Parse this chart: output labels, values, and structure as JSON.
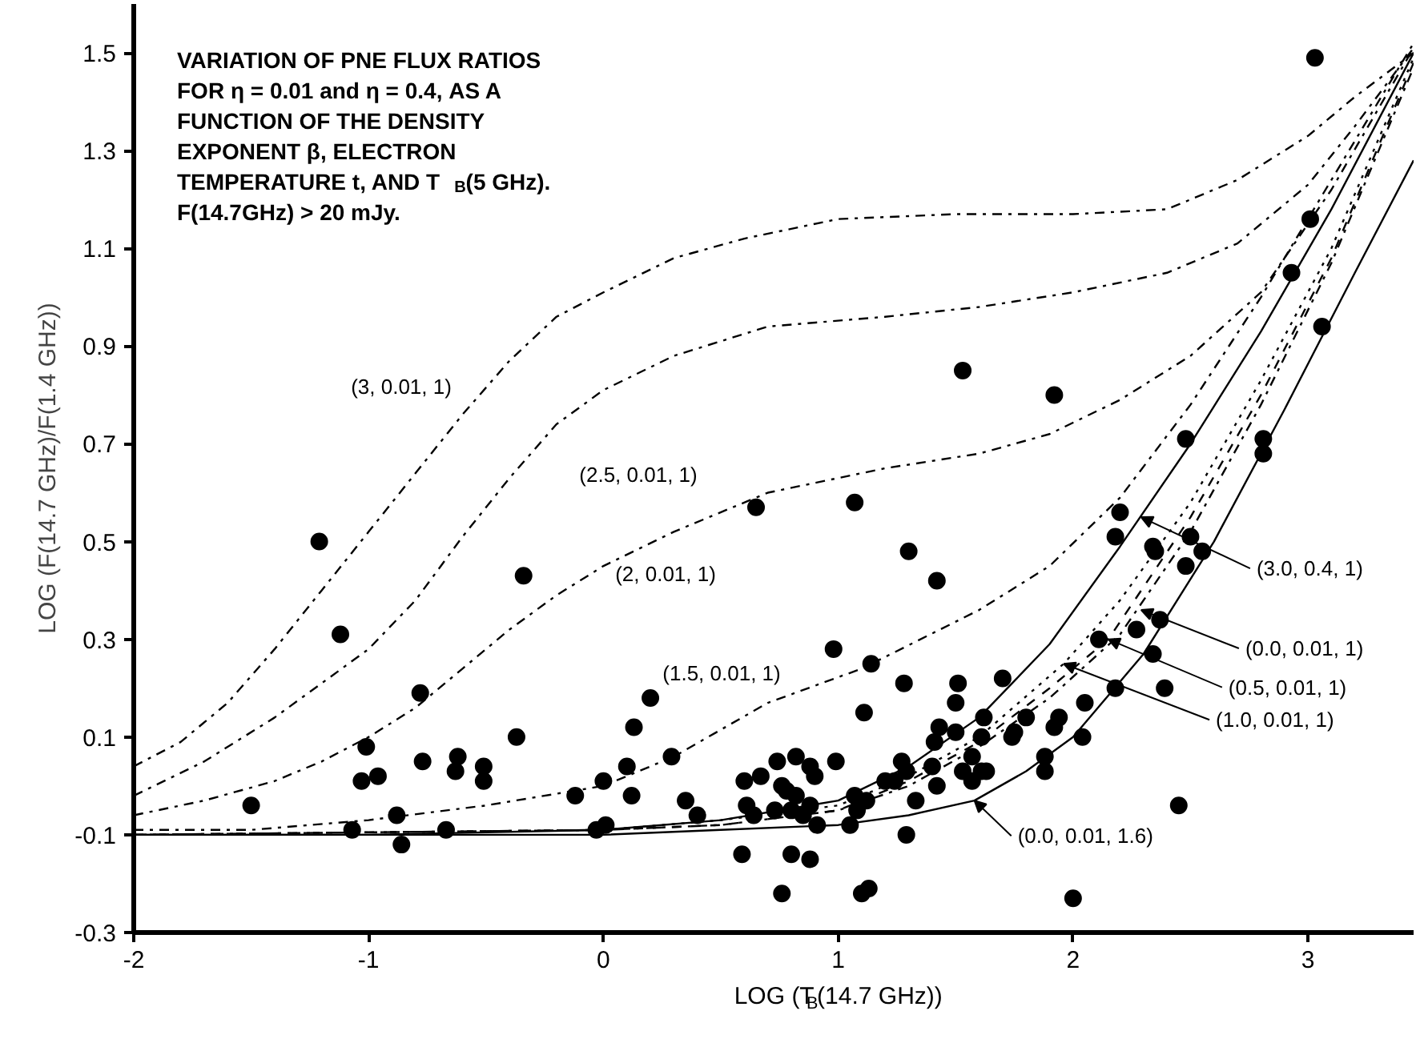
{
  "chart_data": {
    "type": "scatter",
    "xlabel": "LOG (T$_{B}$(14.7 GHz))",
    "ylabel": "LOG (F(14.7 GHz)/F(1.4 GHz))",
    "xlim": [
      -2,
      3.45
    ],
    "ylim": [
      -0.3,
      1.6
    ],
    "xticks": [
      -2,
      -1,
      0,
      1,
      2,
      3
    ],
    "yticks": [
      -0.3,
      -0.1,
      0.1,
      0.3,
      0.5,
      0.7,
      0.9,
      1.1,
      1.3,
      1.5
    ],
    "grid": false,
    "series": [
      {
        "marker": "circle",
        "color": "#000000",
        "x": [
          -1.5,
          -1.21,
          -1.12,
          -0.78,
          -0.34,
          -0.37,
          -1.01,
          -1.03,
          -0.96,
          -0.77,
          -0.62,
          -0.63,
          -0.51,
          -0.51,
          -0.88,
          -1.07,
          -0.67,
          -0.86,
          -0.12,
          0.0,
          0.1,
          0.13,
          0.2,
          0.12,
          0.29,
          0.35,
          0.4,
          -0.03,
          0.01,
          0.59,
          0.6,
          0.61,
          0.64,
          0.67,
          0.65,
          1.07,
          1.3,
          1.42,
          0.98,
          1.14,
          1.11,
          1.28,
          1.51,
          1.5,
          1.7,
          1.62,
          1.43,
          1.41,
          1.5,
          1.61,
          1.74,
          1.75,
          1.8,
          1.94,
          1.92,
          2.05,
          2.04,
          1.88,
          1.88,
          1.57,
          1.53,
          1.57,
          1.61,
          1.63,
          1.4,
          1.42,
          1.33,
          1.27,
          1.29,
          1.24,
          1.2,
          0.99,
          0.82,
          0.88,
          0.9,
          0.74,
          0.76,
          0.78,
          0.82,
          0.73,
          0.8,
          0.85,
          0.88,
          0.91,
          1.05,
          1.07,
          1.12,
          1.08,
          1.29,
          0.8,
          0.88,
          0.76,
          1.1,
          1.13,
          2.0,
          2.45,
          2.18,
          2.39,
          2.11,
          2.27,
          2.37,
          2.34,
          2.2,
          2.18,
          2.34,
          2.35,
          2.5,
          2.55,
          2.48,
          3.03,
          3.01,
          2.93,
          3.06,
          2.81,
          2.81,
          2.48,
          1.53,
          1.92
        ],
        "values": [
          -0.04,
          0.5,
          0.31,
          0.19,
          0.43,
          0.1,
          0.08,
          0.01,
          0.02,
          0.05,
          0.06,
          0.03,
          0.04,
          0.01,
          -0.06,
          -0.09,
          -0.09,
          -0.12,
          -0.02,
          0.01,
          0.04,
          0.12,
          0.18,
          -0.02,
          0.06,
          -0.03,
          -0.06,
          -0.09,
          -0.08,
          -0.14,
          0.01,
          -0.04,
          -0.06,
          0.02,
          0.57,
          0.58,
          0.48,
          0.42,
          0.28,
          0.25,
          0.15,
          0.21,
          0.21,
          0.17,
          0.22,
          0.14,
          0.12,
          0.09,
          0.11,
          0.1,
          0.1,
          0.11,
          0.14,
          0.14,
          0.12,
          0.17,
          0.1,
          0.06,
          0.03,
          0.06,
          0.03,
          0.01,
          0.03,
          0.03,
          0.04,
          0.0,
          -0.03,
          0.05,
          0.03,
          0.01,
          0.01,
          0.05,
          0.06,
          0.04,
          0.02,
          0.05,
          0.0,
          -0.01,
          -0.02,
          -0.05,
          -0.05,
          -0.06,
          -0.04,
          -0.08,
          -0.08,
          -0.02,
          -0.03,
          -0.05,
          -0.1,
          -0.14,
          -0.15,
          -0.22,
          -0.22,
          -0.21,
          -0.23,
          -0.04,
          0.2,
          0.2,
          0.3,
          0.32,
          0.34,
          0.27,
          0.56,
          0.51,
          0.49,
          0.48,
          0.51,
          0.48,
          0.45,
          1.49,
          1.16,
          1.05,
          0.94,
          0.71,
          0.68,
          0.71,
          0.85,
          0.8
        ]
      },
      {
        "type": "line",
        "line_style": "dashdot",
        "color": "#000000",
        "x": [
          -2,
          -1.8,
          -1.6,
          -1.4,
          -1.2,
          -1,
          -0.8,
          -0.6,
          -0.4,
          -0.2,
          0,
          0.3,
          0.6,
          1,
          1.5,
          2,
          2.4,
          2.7,
          3,
          3.2,
          3.45
        ],
        "values": [
          0.04,
          0.09,
          0.17,
          0.28,
          0.4,
          0.52,
          0.64,
          0.76,
          0.87,
          0.96,
          1.01,
          1.08,
          1.12,
          1.16,
          1.17,
          1.17,
          1.18,
          1.24,
          1.33,
          1.41,
          1.5
        ]
      },
      {
        "type": "line",
        "line_style": "dashdot",
        "color": "#000000",
        "x": [
          -2,
          -1.7,
          -1.4,
          -1.2,
          -1,
          -0.8,
          -0.6,
          -0.4,
          -0.2,
          0,
          0.3,
          0.7,
          1.2,
          1.6,
          2,
          2.4,
          2.7,
          3,
          3.2,
          3.45
        ],
        "values": [
          -0.02,
          0.05,
          0.14,
          0.21,
          0.28,
          0.38,
          0.51,
          0.63,
          0.74,
          0.81,
          0.88,
          0.94,
          0.96,
          0.98,
          1.01,
          1.05,
          1.11,
          1.23,
          1.35,
          1.51
        ]
      },
      {
        "type": "line",
        "line_style": "dashdot",
        "color": "#000000",
        "x": [
          -2,
          -1.7,
          -1.4,
          -1.2,
          -1,
          -0.8,
          -0.6,
          -0.4,
          -0.2,
          0,
          0.3,
          0.7,
          1.2,
          1.6,
          1.9,
          2.2,
          2.5,
          2.8,
          3.1,
          3.45
        ],
        "values": [
          -0.06,
          -0.03,
          0.01,
          0.05,
          0.1,
          0.16,
          0.24,
          0.32,
          0.39,
          0.45,
          0.52,
          0.6,
          0.65,
          0.68,
          0.72,
          0.79,
          0.88,
          1.01,
          1.22,
          1.51
        ]
      },
      {
        "type": "line",
        "line_style": "dashdot",
        "color": "#000000",
        "x": [
          -2,
          -1.5,
          -1,
          -0.5,
          0,
          0.3,
          0.7,
          1.1,
          1.6,
          1.9,
          2.2,
          2.5,
          2.8,
          3.1,
          3.45
        ],
        "values": [
          -0.09,
          -0.09,
          -0.07,
          -0.04,
          0.0,
          0.06,
          0.17,
          0.24,
          0.36,
          0.45,
          0.59,
          0.78,
          1.0,
          1.24,
          1.52
        ]
      },
      {
        "type": "line",
        "line_style": "solid",
        "color": "#000000",
        "x": [
          -2,
          -1,
          0,
          0.5,
          1,
          1.3,
          1.6,
          1.9,
          2.2,
          2.5,
          2.8,
          3.1,
          3.45
        ],
        "values": [
          -0.1,
          -0.1,
          -0.09,
          -0.07,
          -0.03,
          0.04,
          0.14,
          0.29,
          0.49,
          0.7,
          0.93,
          1.18,
          1.5
        ]
      },
      {
        "type": "line",
        "line_style": "dashdot",
        "color": "#000000",
        "x": [
          -2,
          0,
          0.5,
          1,
          1.3,
          1.6,
          1.9,
          2.2,
          2.5,
          2.8,
          3.1,
          3.45
        ],
        "values": [
          -0.1,
          -0.09,
          -0.08,
          -0.05,
          0.0,
          0.08,
          0.18,
          0.31,
          0.52,
          0.78,
          1.07,
          1.47
        ]
      },
      {
        "type": "line",
        "line_style": "dashed",
        "color": "#000000",
        "x": [
          -2,
          0,
          0.5,
          1,
          1.3,
          1.6,
          1.9,
          2.15,
          2.5,
          2.8,
          3.1,
          3.45
        ],
        "values": [
          -0.1,
          -0.09,
          -0.08,
          -0.05,
          0.01,
          0.09,
          0.2,
          0.3,
          0.55,
          0.8,
          1.08,
          1.48
        ]
      },
      {
        "type": "line",
        "line_style": "dotted",
        "color": "#000000",
        "x": [
          -2,
          0,
          0.5,
          1,
          1.3,
          1.6,
          1.96,
          2.2,
          2.5,
          2.8,
          3.1,
          3.45
        ],
        "values": [
          -0.1,
          -0.09,
          -0.07,
          -0.04,
          0.02,
          0.1,
          0.25,
          0.38,
          0.58,
          0.83,
          1.1,
          1.49
        ]
      },
      {
        "type": "line",
        "line_style": "solid",
        "color": "#000000",
        "x": [
          -2,
          0,
          0.5,
          1,
          1.3,
          1.58,
          1.8,
          2,
          2.3,
          2.6,
          2.9,
          3.2,
          3.45
        ],
        "values": [
          -0.1,
          -0.1,
          -0.09,
          -0.08,
          -0.06,
          -0.03,
          0.03,
          0.1,
          0.27,
          0.5,
          0.77,
          1.05,
          1.28
        ]
      }
    ],
    "annotations": [
      "VARIATION OF PNE FLUX RATIOS\nFOR η = 0.01 and η = 0.4, AS A\nFUNCTION OF THE DENSITY\nEXPONENT β, ELECTRON\nTEMPERATURE t, AND T$_{B}$(5 GHz).\nF(14.7GHz) > 20 mJy.",
      "(3, 0.01, 1)",
      "(2.5, 0.01, 1)",
      "(2, 0.01, 1)",
      "(1.5, 0.01, 1)",
      {
        "text": "(3.0, 0.4, 1)",
        "x": 2.29,
        "y": 0.55
      },
      {
        "text": "(0.0, 0.01, 1)",
        "x": 2.29,
        "y": 0.36
      },
      {
        "text": "(0.5, 0.01, 1)",
        "x": 2.15,
        "y": 0.3
      },
      {
        "text": "(1.0, 0.01, 1)",
        "x": 1.96,
        "y": 0.25
      },
      {
        "text": "(0.0, 0.01, 1.6)",
        "x": 1.58,
        "y": -0.03
      }
    ]
  }
}
